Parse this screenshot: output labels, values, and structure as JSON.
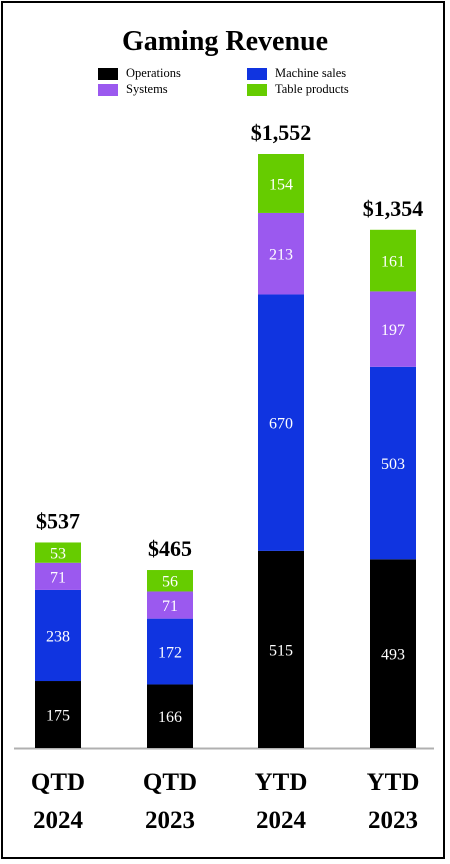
{
  "chart_data": {
    "type": "bar",
    "stacked": true,
    "title": "Gaming Revenue",
    "categories": [
      [
        "QTD",
        "2024"
      ],
      [
        "QTD",
        "2023"
      ],
      [
        "YTD",
        "2024"
      ],
      [
        "YTD",
        "2023"
      ]
    ],
    "totals": [
      "$537",
      "$465",
      "$1,552",
      "$1,354"
    ],
    "series": [
      {
        "name": "Operations",
        "color": "#000000",
        "label_color": "#ffffff",
        "values": [
          175,
          166,
          515,
          493
        ]
      },
      {
        "name": "Machine sales",
        "color": "#1034e0",
        "label_color": "#ffffff",
        "values": [
          238,
          172,
          670,
          503
        ]
      },
      {
        "name": "Systems",
        "color": "#9b59ef",
        "label_color": "#ffffff",
        "values": [
          71,
          71,
          213,
          197
        ]
      },
      {
        "name": "Table products",
        "color": "#66cc00",
        "label_color": "#ffffff",
        "values": [
          53,
          56,
          154,
          161
        ]
      }
    ],
    "legend": "top",
    "grid": false
  }
}
